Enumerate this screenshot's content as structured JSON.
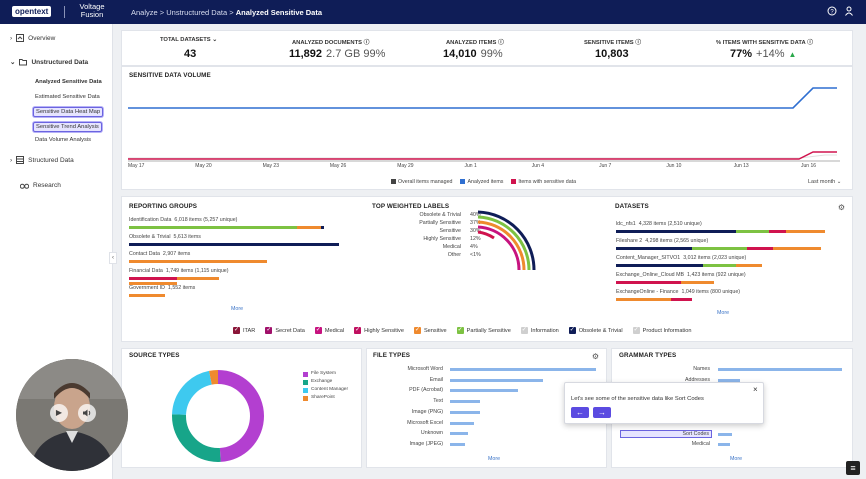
{
  "header": {
    "logo": "opentext",
    "product": "Voltage Fusion",
    "breadcrumb": [
      "Analyze",
      "Unstructured Data"
    ],
    "breadcrumb_current": "Analyzed Sensitive Data",
    "separator": ">"
  },
  "sidebar": {
    "items": [
      {
        "label": "Overview"
      },
      {
        "label": "Unstructured Data"
      },
      {
        "label": "Structured Data"
      },
      {
        "label": "Research"
      }
    ],
    "subitems": [
      {
        "label": "Analyzed Sensitive Data"
      },
      {
        "label": "Estimated Sensitive Data"
      },
      {
        "label": "Sensitive Data Heat Map"
      },
      {
        "label": "Sensitive Trend Analysis"
      },
      {
        "label": "Data Volume Analysis"
      }
    ]
  },
  "kpis": [
    {
      "label": "TOTAL DATASETS",
      "value": "43",
      "suffix": ""
    },
    {
      "label": "ANALYZED DOCUMENTS",
      "value": "11,892",
      "suffix": "2.7 GB  99%"
    },
    {
      "label": "ANALYZED ITEMS",
      "value": "14,010",
      "suffix": "99%"
    },
    {
      "label": "SENSITIVE ITEMS",
      "value": "10,803",
      "suffix": ""
    },
    {
      "label": "% ITEMS WITH SENSITIVE DATA",
      "value": "77%",
      "suffix": "+14%"
    }
  ],
  "volume": {
    "title": "SENSITIVE DATA VOLUME",
    "dates": [
      "May 17",
      "May 20",
      "May 23",
      "May 26",
      "May 29",
      "Jun 1",
      "Jun 4",
      "Jun 7",
      "Jun 10",
      "Jun 13",
      "Jun 16"
    ],
    "legend": [
      "Overall items managed",
      "Analyzed items",
      "Items with sensitive data"
    ],
    "range": "Last month"
  },
  "reporting_groups": {
    "title": "REPORTING GROUPS",
    "rows": [
      {
        "name": "Identification Data",
        "detail": "6,018 items (5,257 unique)"
      },
      {
        "name": "Obsolete & Trivial",
        "detail": "5,613 items"
      },
      {
        "name": "Contact Data",
        "detail": "2,907 items"
      },
      {
        "name": "Financial Data",
        "detail": "1,749 items (1,115 unique)"
      },
      {
        "name": "Government ID",
        "detail": "1,552 items"
      }
    ],
    "more": "More"
  },
  "weighted": {
    "title": "TOP WEIGHTED LABELS",
    "rows": [
      {
        "name": "Obsolete & Trivial",
        "pct": "40%"
      },
      {
        "name": "Partially Sensitive",
        "pct": "37%"
      },
      {
        "name": "Sensitive",
        "pct": "30%"
      },
      {
        "name": "Highly Sensitive",
        "pct": "12%"
      },
      {
        "name": "Medical",
        "pct": "4%"
      },
      {
        "name": "Other",
        "pct": "<1%"
      }
    ]
  },
  "datasets": {
    "title": "DATASETS",
    "rows": [
      {
        "name": "ldc_nfs1",
        "detail": "4,328 items (2,510 unique)"
      },
      {
        "name": "Fileshare 2",
        "detail": "4,298 items (2,565 unique)"
      },
      {
        "name": "Content_Manager_SITVO1",
        "detail": "3,012 items (2,023 unique)"
      },
      {
        "name": "Exchange_Online_Cloud MB",
        "detail": "1,423 items (922 unique)"
      },
      {
        "name": "ExchangeOnline - Finance",
        "detail": "1,049 items (800 unique)"
      }
    ],
    "more": "More"
  },
  "label_legend": [
    "ITAR",
    "Secret Data",
    "Medical",
    "Highly Sensitive",
    "Sensitive",
    "Partially Sensitive",
    "Information",
    "Obsolete & Trivial",
    "Product Information"
  ],
  "source_types": {
    "title": "SOURCE TYPES",
    "legend": [
      "File System",
      "Exchange",
      "Content Manager",
      "SharePoint"
    ]
  },
  "file_types": {
    "title": "FILE TYPES",
    "rows": [
      {
        "name": "Microsoft Word",
        "value": 0.97
      },
      {
        "name": "Email",
        "value": 0.62
      },
      {
        "name": "PDF (Acrobat)",
        "value": 0.45
      },
      {
        "name": "Text",
        "value": 0.2
      },
      {
        "name": "Image (PNG)",
        "value": 0.2
      },
      {
        "name": "Microsoft Excel",
        "value": 0.16
      },
      {
        "name": "Unknown",
        "value": 0.12
      },
      {
        "name": "Image (JPEG)",
        "value": 0.1
      }
    ],
    "more": "More"
  },
  "grammar_types": {
    "title": "GRAMMAR TYPES",
    "rows": [
      "Names",
      "Addresses",
      "Sort Codes",
      "Medical"
    ],
    "more": "More"
  },
  "tooltip": {
    "text": "Let's see some of the sensitive data like Sort Codes",
    "close": "×"
  },
  "colors": {
    "navy": "#0f1d57",
    "blue": "#2f6fd1",
    "crimson": "#d0134e",
    "orange": "#ef8a2e",
    "green": "#7dc242",
    "purple": "#b33fd0",
    "teal": "#17a589",
    "cyan": "#3ec9ef"
  }
}
